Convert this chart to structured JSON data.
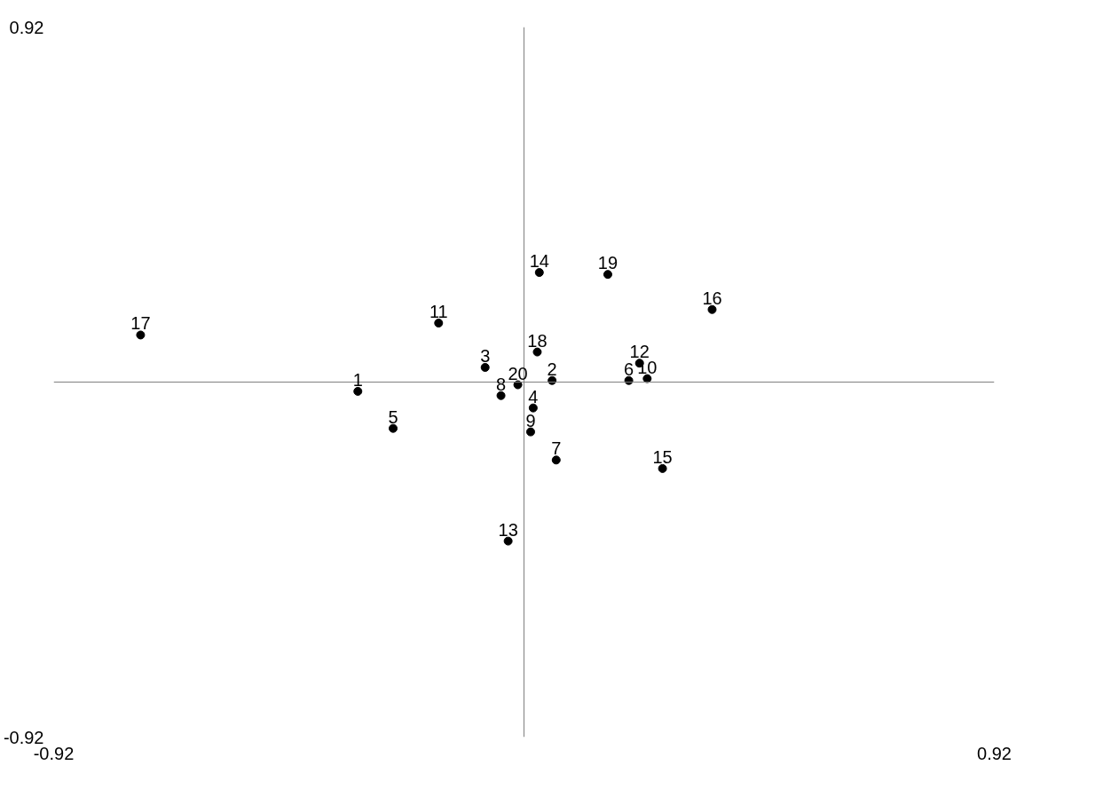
{
  "chart_data": {
    "type": "scatter",
    "x": [
      -0.325,
      0.055,
      -0.076,
      0.018,
      -0.256,
      0.205,
      0.063,
      -0.045,
      0.013,
      0.241,
      -0.167,
      0.226,
      -0.031,
      0.03,
      0.271,
      0.368,
      -0.75,
      0.026,
      0.164,
      -0.012
    ],
    "values": [
      -0.024,
      0.004,
      0.038,
      -0.067,
      -0.12,
      0.004,
      -0.202,
      -0.035,
      -0.129,
      0.009,
      0.153,
      0.049,
      -0.412,
      0.284,
      -0.224,
      0.188,
      0.122,
      0.078,
      0.279,
      -0.007
    ],
    "color": "#000000",
    "marker": "circle",
    "annotations": [
      {
        "text": "1",
        "x": -0.325,
        "y": -0.024
      },
      {
        "text": "2",
        "x": 0.055,
        "y": 0.004
      },
      {
        "text": "3",
        "x": -0.076,
        "y": 0.038
      },
      {
        "text": "4",
        "x": 0.018,
        "y": -0.067
      },
      {
        "text": "5",
        "x": -0.256,
        "y": -0.12
      },
      {
        "text": "6",
        "x": 0.205,
        "y": 0.004
      },
      {
        "text": "7",
        "x": 0.063,
        "y": -0.202
      },
      {
        "text": "8",
        "x": -0.045,
        "y": -0.035
      },
      {
        "text": "9",
        "x": 0.013,
        "y": -0.129
      },
      {
        "text": "10",
        "x": 0.241,
        "y": 0.009
      },
      {
        "text": "11",
        "x": -0.167,
        "y": 0.153
      },
      {
        "text": "12",
        "x": 0.226,
        "y": 0.049
      },
      {
        "text": "13",
        "x": -0.031,
        "y": -0.412
      },
      {
        "text": "14",
        "x": 0.03,
        "y": 0.284
      },
      {
        "text": "15",
        "x": 0.271,
        "y": -0.224
      },
      {
        "text": "16",
        "x": 0.368,
        "y": 0.188
      },
      {
        "text": "17",
        "x": -0.75,
        "y": 0.122
      },
      {
        "text": "18",
        "x": 0.026,
        "y": 0.078
      },
      {
        "text": "19",
        "x": 0.164,
        "y": 0.279
      },
      {
        "text": "20",
        "x": -0.012,
        "y": -0.007
      }
    ],
    "xlim": [
      -0.92,
      0.92
    ],
    "ylim": [
      -0.92,
      0.92
    ],
    "xticks": [
      -0.92,
      0.92
    ],
    "yticks": [
      -0.92,
      0.92
    ]
  }
}
